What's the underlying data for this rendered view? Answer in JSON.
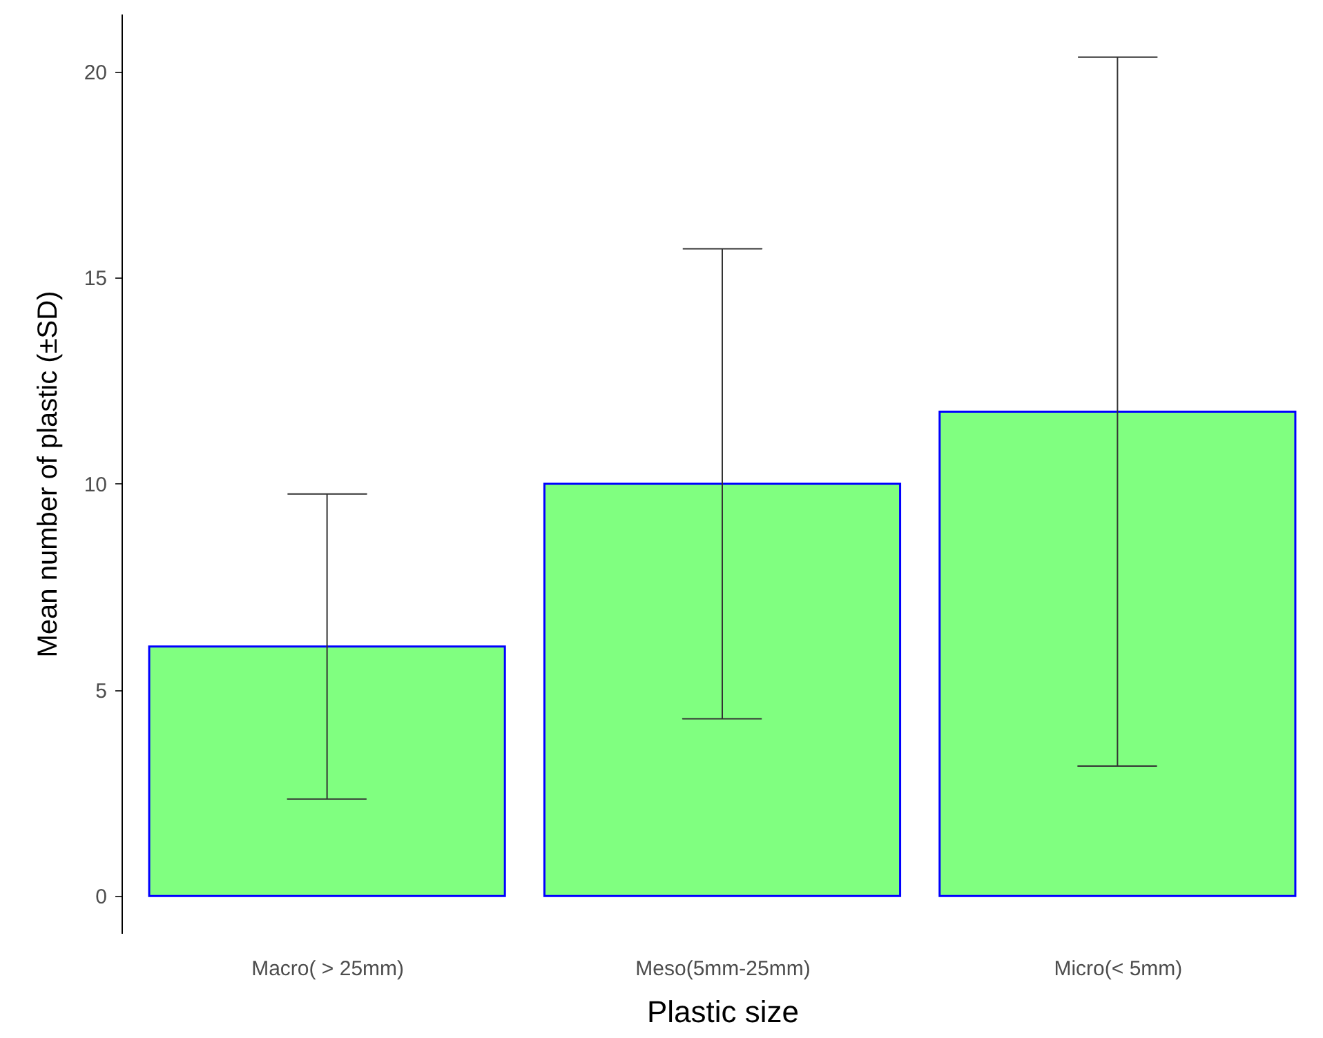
{
  "chart_data": {
    "type": "bar",
    "xlabel": "Plastic size",
    "ylabel": "Mean number of plastic (±SD)",
    "categories": [
      "Macro( > 25mm)",
      "Meso(5mm-25mm)",
      "Micro(< 5mm)"
    ],
    "values": [
      6.05,
      10.0,
      11.75
    ],
    "errors": [
      3.7,
      5.7,
      8.6
    ],
    "color": "#80ff80",
    "ylim": [
      -0.9,
      21.4
    ],
    "yticks": [
      0,
      5,
      10,
      15,
      20
    ],
    "grid": false
  }
}
